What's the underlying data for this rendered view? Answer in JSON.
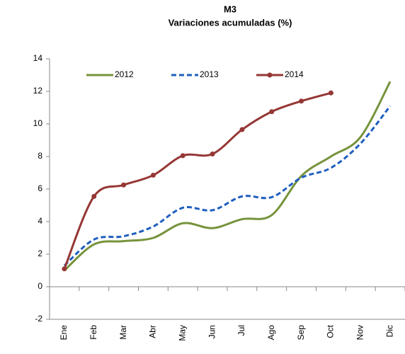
{
  "chart_data": {
    "type": "line",
    "title": "M3",
    "subtitle": "Variaciones acumuladas (%)",
    "categories": [
      "Ene",
      "Feb",
      "Mar",
      "Abr",
      "May",
      "Jun",
      "Jul",
      "Ago",
      "Sep",
      "Oct",
      "Nov",
      "Dic"
    ],
    "series": [
      {
        "name": "2012",
        "color": "#77933c",
        "dash": false,
        "markers": false,
        "values": [
          1.0,
          2.6,
          2.8,
          3.0,
          3.9,
          3.6,
          4.15,
          4.4,
          6.8,
          8.0,
          9.2,
          12.6
        ]
      },
      {
        "name": "2013",
        "color": "#1f5fbf",
        "dash": true,
        "markers": false,
        "values": [
          1.3,
          2.9,
          3.1,
          3.7,
          4.85,
          4.7,
          5.55,
          5.5,
          6.7,
          7.3,
          8.8,
          11.1
        ]
      },
      {
        "name": "2014",
        "color": "#953735",
        "dash": false,
        "markers": true,
        "values": [
          1.1,
          5.55,
          6.25,
          6.85,
          8.05,
          8.15,
          9.65,
          10.75,
          11.4,
          11.9,
          null,
          null
        ]
      }
    ],
    "ylim": [
      -2,
      14
    ],
    "yticks": [
      -2,
      0,
      2,
      4,
      6,
      8,
      10,
      12,
      14
    ],
    "grid": false,
    "legend": "upper left",
    "smooth": true
  }
}
